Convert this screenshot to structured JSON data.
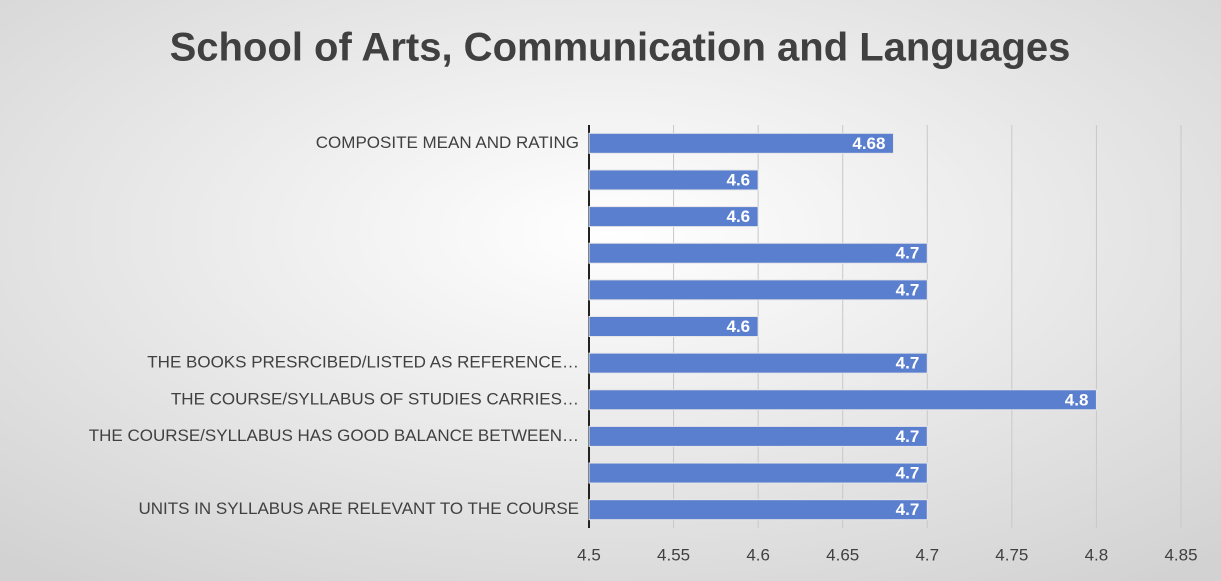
{
  "chart_data": {
    "type": "barh",
    "title": "School of Arts, Communication and Languages",
    "categories": [
      "UNITS IN SYLLABUS ARE RELEVANT TO THE COURSE",
      null,
      "THE COURSE/SYLLABUS HAS GOOD BALANCE BETWEEN…",
      "THE COURSE/SYLLABUS OF STUDIES CARRIES…",
      "THE BOOKS PRESRCIBED/LISTED AS REFERENCE…",
      null,
      null,
      null,
      null,
      null,
      "COMPOSITE MEAN AND RATING"
    ],
    "values": [
      4.7,
      4.7,
      4.7,
      4.8,
      4.7,
      4.6,
      4.7,
      4.7,
      4.6,
      4.6,
      4.68
    ],
    "color": "#5b7fcf",
    "xlim": [
      4.5,
      4.85
    ],
    "xticks": [
      4.5,
      4.55,
      4.6,
      4.65,
      4.7,
      4.75,
      4.8,
      4.85
    ],
    "grid": true
  }
}
